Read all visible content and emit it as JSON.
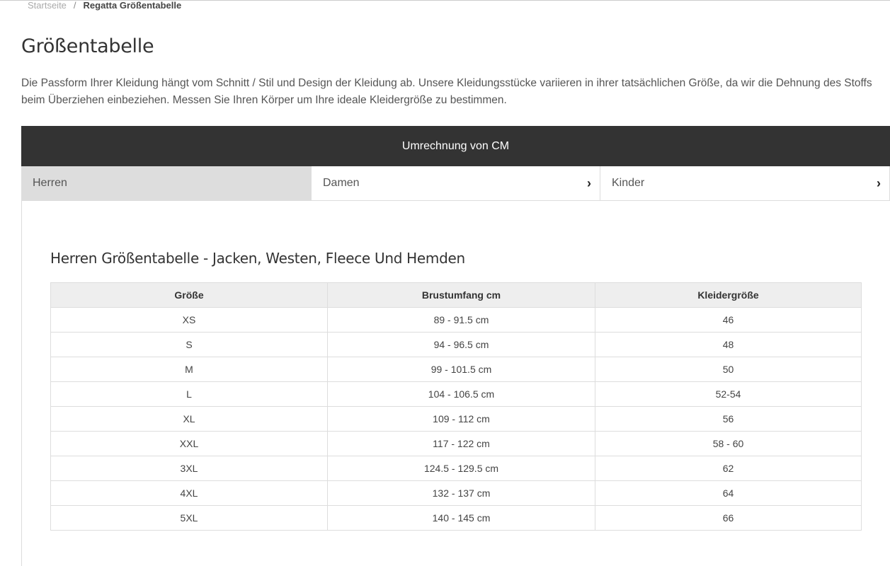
{
  "breadcrumb": {
    "home": "Startseite",
    "separator": "/",
    "current": "Regatta Größentabelle"
  },
  "page_title": "Größentabelle",
  "intro": "Die Passform Ihrer Kleidung hängt vom Schnitt / Stil und Design der Kleidung ab. Unsere Kleidungsstücke variieren in ihrer tatsächlichen Größe, da wir die Dehnung des Stoffs beim Überziehen einbeziehen. Messen Sie Ihren Körper um Ihre ideale Kleidergröße zu bestimmen.",
  "conversion_bar": "Umrechnung von CM",
  "tabs": [
    {
      "label": "Herren",
      "active": true
    },
    {
      "label": "Damen",
      "icon": "chevron-right-icon"
    },
    {
      "label": "Kinder",
      "icon": "chevron-right-icon"
    }
  ],
  "section_title": "Herren Größentabelle - Jacken, Westen, Fleece Und Hemden",
  "table": {
    "headers": [
      "Größe",
      "Brustumfang cm",
      "Kleidergröße"
    ],
    "rows": [
      [
        "XS",
        "89 - 91.5 cm",
        "46"
      ],
      [
        "S",
        "94 - 96.5 cm",
        "48"
      ],
      [
        "M",
        "99 - 101.5 cm",
        "50"
      ],
      [
        "L",
        "104 - 106.5 cm",
        "52-54"
      ],
      [
        "XL",
        "109 - 112 cm",
        "56"
      ],
      [
        "XXL",
        "117 - 122 cm",
        "58 - 60"
      ],
      [
        "3XL",
        "124.5 - 129.5 cm",
        "62"
      ],
      [
        "4XL",
        "132 - 137 cm",
        "64"
      ],
      [
        "5XL",
        "140 - 145 cm",
        "66"
      ]
    ]
  }
}
